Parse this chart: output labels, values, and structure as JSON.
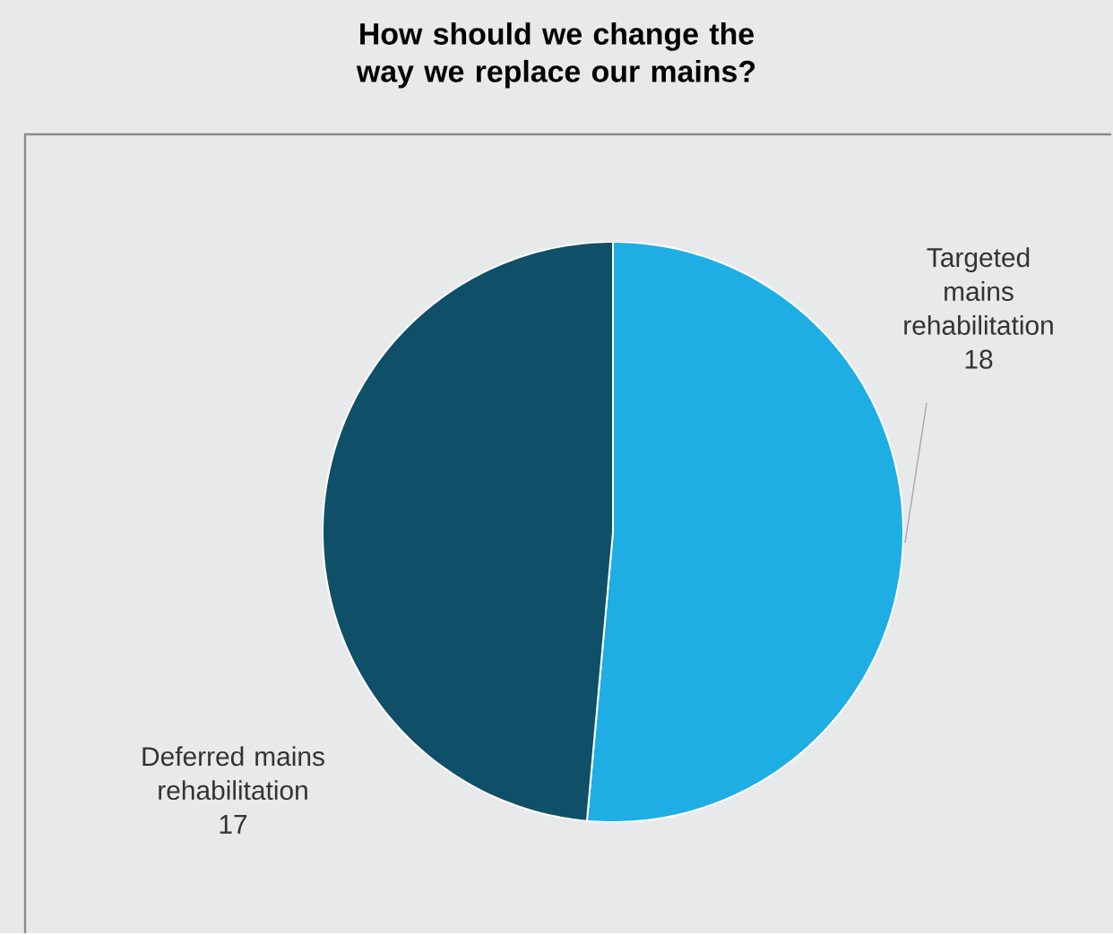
{
  "chart_data": {
    "type": "pie",
    "title": "How should we change the way we replace our mains?",
    "categories": [
      "Targeted mains rehabilitation",
      "Deferred mains rehabilitation"
    ],
    "values": [
      18,
      17
    ],
    "colors": [
      "#1eaee4",
      "#0f5068"
    ],
    "data_labels": true
  }
}
